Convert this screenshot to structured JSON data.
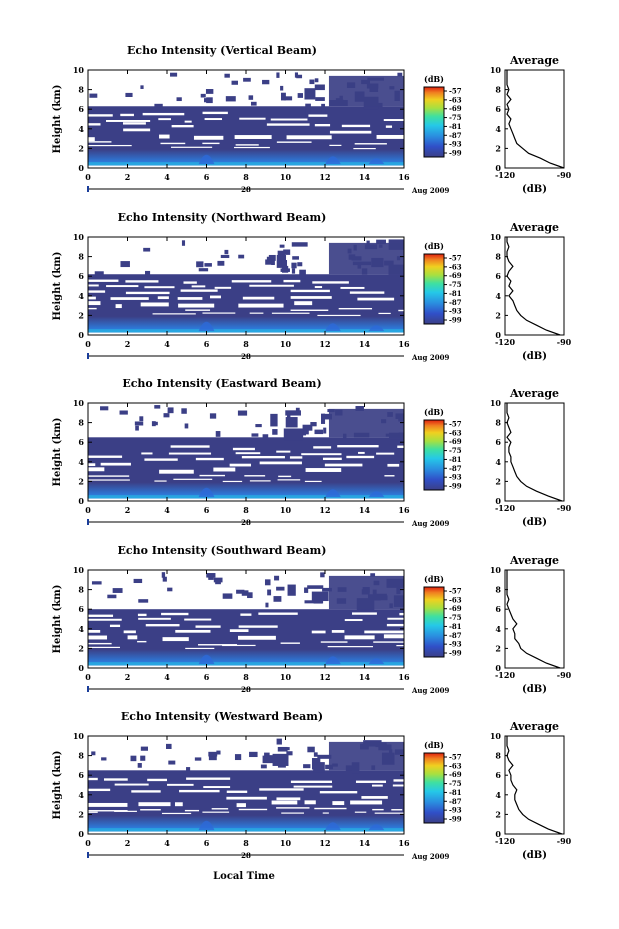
{
  "figure": {
    "xlabel_bottom": "Local Time",
    "date_day": "28",
    "date_month_year": "Aug 2009",
    "ylabel": "Height (km)",
    "colorbar_unit": "(dB)",
    "colorbar_ticks": [
      "-57",
      "-63",
      "-69",
      "-75",
      "-81",
      "-87",
      "-93",
      "-99"
    ],
    "average_title": "Average",
    "average_xlabel": "(dB)",
    "average_xticks": [
      "-120",
      "-90"
    ],
    "colors": {
      "background_dark": "#3b3f86",
      "white": "#ffffff",
      "low_echo": "#2d69d8",
      "mid_echo": "#27b8e6"
    }
  },
  "chart_data": [
    {
      "type": "heatmap",
      "title": "Echo Intensity (Vertical Beam)",
      "x_ticks": [
        "0",
        "2",
        "4",
        "6",
        "8",
        "10",
        "12",
        "14",
        "16"
      ],
      "y_ticks": [
        "0",
        "2",
        "4",
        "6",
        "8",
        "10"
      ],
      "xlim": [
        0,
        16
      ],
      "ylim": [
        0,
        10
      ],
      "colorbar_range": [
        -99,
        -57
      ],
      "valid_data_top_km": 6.3,
      "sparse_top_km": 10,
      "average_profile": {
        "xlim": [
          -120,
          -90
        ],
        "height_km": [
          0,
          0.5,
          1,
          1.5,
          2,
          2.5,
          3,
          3.5,
          4,
          4.5,
          5,
          5.5,
          6,
          6.5,
          7,
          7.5,
          8,
          8.5,
          9,
          9.5,
          10
        ],
        "value_dB": [
          -90,
          -97,
          -102,
          -108,
          -111,
          -114,
          -115,
          -116,
          -117,
          -118,
          -117,
          -119,
          -118,
          -119,
          -117,
          -119,
          -118,
          -119,
          -119,
          -119,
          -119
        ]
      }
    },
    {
      "type": "heatmap",
      "title": "Echo Intensity (Northward Beam)",
      "x_ticks": [
        "0",
        "2",
        "4",
        "6",
        "8",
        "10",
        "12",
        "14",
        "16"
      ],
      "y_ticks": [
        "0",
        "2",
        "4",
        "6",
        "8",
        "10"
      ],
      "xlim": [
        0,
        16
      ],
      "ylim": [
        0,
        10
      ],
      "colorbar_range": [
        -99,
        -57
      ],
      "valid_data_top_km": 6.2,
      "sparse_top_km": 10,
      "average_profile": {
        "xlim": [
          -120,
          -90
        ],
        "height_km": [
          0,
          0.5,
          1,
          1.5,
          2,
          2.5,
          3,
          3.5,
          4,
          4.5,
          5,
          5.5,
          6,
          6.5,
          7,
          7.5,
          8,
          8.5,
          9,
          9.5,
          10
        ],
        "value_dB": [
          -92,
          -99,
          -104,
          -109,
          -112,
          -114,
          -115,
          -116,
          -118,
          -116,
          -118,
          -117,
          -119,
          -118,
          -116,
          -118,
          -119,
          -119,
          -118,
          -119,
          -119
        ]
      }
    },
    {
      "type": "heatmap",
      "title": "Echo Intensity (Eastward Beam)",
      "x_ticks": [
        "0",
        "2",
        "4",
        "6",
        "8",
        "10",
        "12",
        "14",
        "16"
      ],
      "y_ticks": [
        "0",
        "2",
        "4",
        "6",
        "8",
        "10"
      ],
      "xlim": [
        0,
        16
      ],
      "ylim": [
        0,
        10
      ],
      "colorbar_range": [
        -99,
        -57
      ],
      "valid_data_top_km": 6.5,
      "sparse_top_km": 10,
      "average_profile": {
        "xlim": [
          -120,
          -90
        ],
        "height_km": [
          0,
          0.5,
          1,
          1.5,
          2,
          2.5,
          3,
          3.5,
          4,
          4.5,
          5,
          5.5,
          6,
          6.5,
          7,
          7.5,
          8,
          8.5,
          9,
          9.5,
          10
        ],
        "value_dB": [
          -91,
          -98,
          -104,
          -109,
          -112,
          -114,
          -115,
          -116,
          -117,
          -117,
          -118,
          -118,
          -117,
          -119,
          -117,
          -118,
          -119,
          -118,
          -119,
          -119,
          -119
        ]
      }
    },
    {
      "type": "heatmap",
      "title": "Echo Intensity (Southward Beam)",
      "x_ticks": [
        "0",
        "2",
        "4",
        "6",
        "8",
        "10",
        "12",
        "14",
        "16"
      ],
      "y_ticks": [
        "0",
        "2",
        "4",
        "6",
        "8",
        "10"
      ],
      "xlim": [
        0,
        16
      ],
      "ylim": [
        0,
        10
      ],
      "colorbar_range": [
        -99,
        -57
      ],
      "valid_data_top_km": 6.0,
      "sparse_top_km": 10,
      "average_profile": {
        "xlim": [
          -120,
          -90
        ],
        "height_km": [
          0,
          0.5,
          1,
          1.5,
          2,
          2.5,
          3,
          3.5,
          4,
          4.5,
          5,
          5.5,
          6,
          6.5,
          7,
          7.5,
          8,
          8.5,
          9,
          9.5,
          10
        ],
        "value_dB": [
          -92,
          -99,
          -104,
          -109,
          -112,
          -113,
          -115,
          -115,
          -116,
          -114,
          -116,
          -117,
          -118,
          -119,
          -118,
          -119,
          -119,
          -119,
          -119,
          -119,
          -119
        ]
      }
    },
    {
      "type": "heatmap",
      "title": "Echo Intensity (Westward Beam)",
      "x_ticks": [
        "0",
        "2",
        "4",
        "6",
        "8",
        "10",
        "12",
        "14",
        "16"
      ],
      "y_ticks": [
        "0",
        "2",
        "4",
        "6",
        "8",
        "10"
      ],
      "xlim": [
        0,
        16
      ],
      "ylim": [
        0,
        10
      ],
      "colorbar_range": [
        -99,
        -57
      ],
      "valid_data_top_km": 6.5,
      "sparse_top_km": 10,
      "average_profile": {
        "xlim": [
          -120,
          -90
        ],
        "height_km": [
          0,
          0.5,
          1,
          1.5,
          2,
          2.5,
          3,
          3.5,
          4,
          4.5,
          5,
          5.5,
          6,
          6.5,
          7,
          7.5,
          8,
          8.5,
          9,
          9.5,
          10
        ],
        "value_dB": [
          -91,
          -98,
          -103,
          -108,
          -111,
          -113,
          -114,
          -115,
          -115,
          -114,
          -116,
          -117,
          -117,
          -118,
          -116,
          -118,
          -119,
          -118,
          -119,
          -119,
          -119
        ]
      }
    }
  ]
}
